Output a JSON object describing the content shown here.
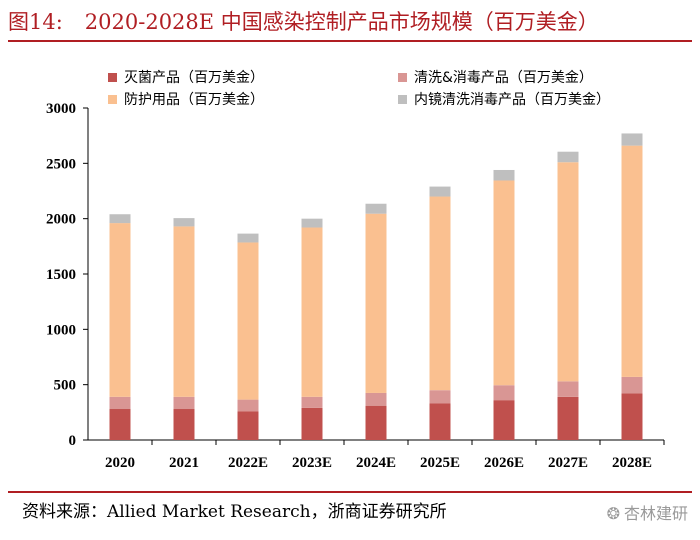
{
  "header": {
    "figure_number": "图14:",
    "title": "2020-2028E 中国感染控制产品市场规模（百万美金）"
  },
  "footer": {
    "source": "资料来源：Allied Market Research，浙商证券研究所",
    "watermark": "杏林建研"
  },
  "colors": {
    "brand_red": "#b01e23",
    "series": [
      "#c0504d",
      "#d99694",
      "#fac090",
      "#bfbfbf"
    ]
  },
  "chart_data": {
    "type": "bar",
    "stacked": true,
    "title": "2020-2028E 中国感染控制产品市场规模（百万美金）",
    "xlabel": "",
    "ylabel": "",
    "categories": [
      "2020",
      "2021",
      "2022E",
      "2023E",
      "2024E",
      "2025E",
      "2026E",
      "2027E",
      "2028E"
    ],
    "ylim": [
      0,
      3000
    ],
    "yticks": [
      0,
      500,
      1000,
      1500,
      2000,
      2500,
      3000
    ],
    "grid": false,
    "legend_position": "top",
    "series": [
      {
        "name": "灭菌产品（百万美金）",
        "values": [
          280,
          280,
          260,
          290,
          310,
          330,
          360,
          390,
          420
        ]
      },
      {
        "name": "清洗&消毒产品（百万美金）",
        "values": [
          110,
          110,
          105,
          100,
          115,
          120,
          135,
          140,
          150
        ]
      },
      {
        "name": "防护用品（百万美金）",
        "values": [
          1570,
          1540,
          1420,
          1530,
          1620,
          1750,
          1850,
          1980,
          2090
        ]
      },
      {
        "name": "内镜清洗消毒产品（百万美金）",
        "values": [
          80,
          75,
          80,
          80,
          90,
          90,
          95,
          95,
          110
        ]
      }
    ]
  }
}
